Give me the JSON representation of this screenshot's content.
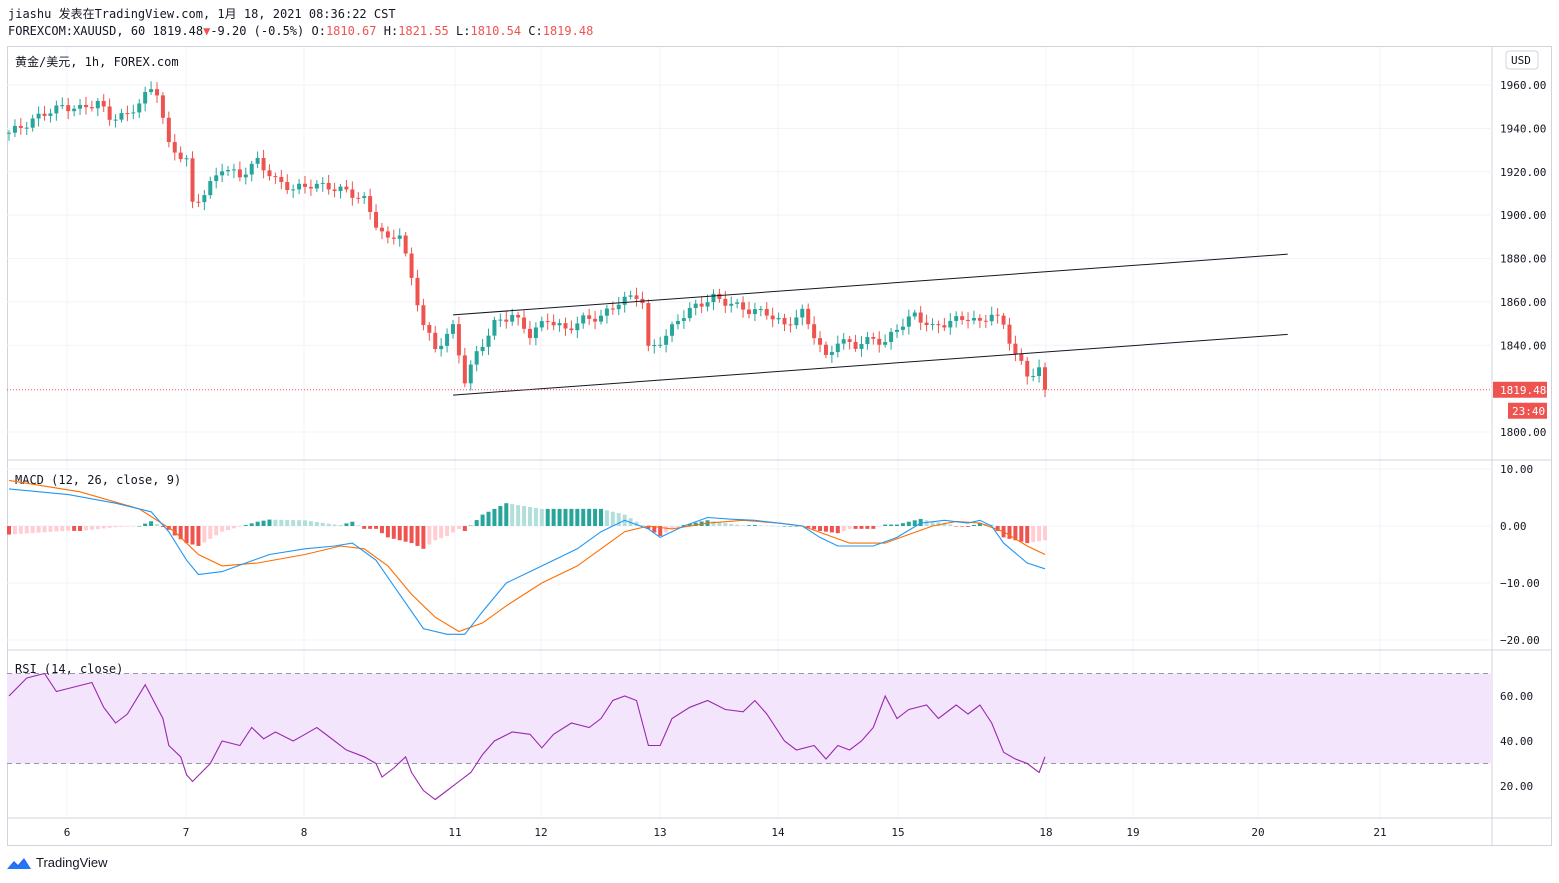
{
  "header": {
    "publish_line": "jiashu 发表在TradingView.com, 1月 18, 2021 08:36:22 CST",
    "symbol": "FOREXCOM:XAUUSD, 60",
    "last": "1819.48",
    "change_arrow": "▼",
    "change": "-9.20 (-0.5%)",
    "open_label": "O:",
    "open": "1810.67",
    "high_label": "H:",
    "high": "1821.55",
    "low_label": "L:",
    "low": "1810.54",
    "close_label": "C:",
    "close": "1819.48"
  },
  "footer": {
    "brand": "TradingView",
    "logo_icon": "tradingview-logo-icon"
  },
  "colors": {
    "up": "#26a69a",
    "down": "#ef5350",
    "macd_line": "#2196f3",
    "signal_line": "#ff6d00",
    "rsi_line": "#9c27b0",
    "rsi_band": "#f3e5fc",
    "channel": "#131722"
  },
  "chart_data": [
    {
      "type": "candlestick",
      "legend": "黄金/美元, 1h, FOREX.com",
      "currency_button": "USD",
      "ylim": [
        1790,
        1972
      ],
      "y_ticks": [
        "1960.00",
        "1940.00",
        "1920.00",
        "1900.00",
        "1880.00",
        "1860.00",
        "1840.00",
        "1800.00"
      ],
      "y_tick_values": [
        1960,
        1940,
        1920,
        1900,
        1880,
        1860,
        1840,
        1800
      ],
      "x_ticks": [
        "6",
        "7",
        "8",
        "11",
        "12",
        "13",
        "14",
        "15",
        "18",
        "19",
        "20",
        "21"
      ],
      "last_price": 1819.48,
      "last_price_label": "1819.48",
      "countdown_label": "23:40",
      "price_path": [
        [
          0,
          1938
        ],
        [
          3,
          1942
        ],
        [
          6,
          1947
        ],
        [
          9,
          1950
        ],
        [
          12,
          1949
        ],
        [
          15,
          1952
        ],
        [
          17,
          1945
        ],
        [
          20,
          1946
        ],
        [
          24,
          1958
        ],
        [
          25,
          1957
        ],
        [
          27,
          1932
        ],
        [
          30,
          1925
        ],
        [
          31,
          1905
        ],
        [
          33,
          1910
        ],
        [
          36,
          1922
        ],
        [
          39,
          1918
        ],
        [
          42,
          1925
        ],
        [
          45,
          1916
        ],
        [
          48,
          1912
        ],
        [
          51,
          1914
        ],
        [
          54,
          1913
        ],
        [
          57,
          1911
        ],
        [
          60,
          1907
        ],
        [
          62,
          1896
        ],
        [
          64,
          1888
        ],
        [
          66,
          1892
        ],
        [
          68,
          1870
        ],
        [
          70,
          1850
        ],
        [
          72,
          1838
        ],
        [
          74,
          1845
        ],
        [
          75,
          1848
        ],
        [
          77,
          1824
        ],
        [
          79,
          1836
        ],
        [
          82,
          1850
        ],
        [
          85,
          1854
        ],
        [
          88,
          1845
        ],
        [
          91,
          1852
        ],
        [
          94,
          1847
        ],
        [
          97,
          1852
        ],
        [
          100,
          1853
        ],
        [
          103,
          1860
        ],
        [
          106,
          1863
        ],
        [
          107,
          1860
        ],
        [
          108,
          1838
        ],
        [
          111,
          1844
        ],
        [
          113,
          1852
        ],
        [
          116,
          1858
        ],
        [
          119,
          1862
        ],
        [
          122,
          1859
        ],
        [
          125,
          1856
        ],
        [
          128,
          1855
        ],
        [
          131,
          1849
        ],
        [
          134,
          1855
        ],
        [
          136,
          1845
        ],
        [
          138,
          1834
        ],
        [
          140,
          1842
        ],
        [
          143,
          1840
        ],
        [
          146,
          1843
        ],
        [
          148,
          1841
        ],
        [
          150,
          1848
        ],
        [
          153,
          1854
        ],
        [
          156,
          1848
        ],
        [
          159,
          1851
        ],
        [
          162,
          1853
        ],
        [
          164,
          1850
        ],
        [
          166,
          1855
        ],
        [
          168,
          1849
        ],
        [
          170,
          1836
        ],
        [
          172,
          1826
        ],
        [
          174,
          1829
        ],
        [
          175,
          1819.48
        ]
      ],
      "channel_upper": {
        "from": [
          75,
          1854
        ],
        "to": [
          216,
          1882
        ]
      },
      "channel_lower": {
        "from": [
          75,
          1817
        ],
        "to": [
          216,
          1845
        ]
      }
    },
    {
      "type": "macd",
      "legend": "MACD (12, 26, close, 9)",
      "ylim": [
        -22,
        12
      ],
      "y_ticks": [
        "10.00",
        "0.00",
        "−10.00",
        "−20.00"
      ],
      "y_tick_values": [
        10,
        0,
        -10,
        -20
      ],
      "macd_path": [
        [
          0,
          6.5
        ],
        [
          10,
          5.5
        ],
        [
          18,
          4
        ],
        [
          24,
          2.5
        ],
        [
          27,
          -1
        ],
        [
          30,
          -6
        ],
        [
          32,
          -8.5
        ],
        [
          36,
          -8
        ],
        [
          40,
          -6.5
        ],
        [
          44,
          -5
        ],
        [
          50,
          -4
        ],
        [
          55,
          -3.5
        ],
        [
          58,
          -3
        ],
        [
          62,
          -6
        ],
        [
          66,
          -12
        ],
        [
          70,
          -18
        ],
        [
          74,
          -19
        ],
        [
          77,
          -19
        ],
        [
          80,
          -15
        ],
        [
          84,
          -10
        ],
        [
          88,
          -8
        ],
        [
          92,
          -6
        ],
        [
          96,
          -4
        ],
        [
          100,
          -1
        ],
        [
          104,
          1
        ],
        [
          108,
          -0.5
        ],
        [
          110,
          -2
        ],
        [
          114,
          0
        ],
        [
          118,
          1.5
        ],
        [
          122,
          1.2
        ],
        [
          126,
          1
        ],
        [
          130,
          0.5
        ],
        [
          134,
          0
        ],
        [
          137,
          -2
        ],
        [
          140,
          -3.5
        ],
        [
          146,
          -3.5
        ],
        [
          150,
          -2
        ],
        [
          154,
          0.5
        ],
        [
          158,
          1
        ],
        [
          162,
          0.5
        ],
        [
          164,
          1
        ],
        [
          166,
          0
        ],
        [
          168,
          -3
        ],
        [
          172,
          -6.5
        ],
        [
          175,
          -7.5
        ]
      ],
      "signal_path": [
        [
          0,
          8
        ],
        [
          12,
          6
        ],
        [
          22,
          3
        ],
        [
          28,
          -1
        ],
        [
          32,
          -5
        ],
        [
          36,
          -7
        ],
        [
          42,
          -6.5
        ],
        [
          50,
          -5
        ],
        [
          56,
          -3.5
        ],
        [
          60,
          -4
        ],
        [
          64,
          -7
        ],
        [
          68,
          -12
        ],
        [
          72,
          -16
        ],
        [
          76,
          -18.5
        ],
        [
          80,
          -17
        ],
        [
          84,
          -14
        ],
        [
          90,
          -10
        ],
        [
          96,
          -7
        ],
        [
          100,
          -4
        ],
        [
          104,
          -1
        ],
        [
          108,
          0
        ],
        [
          112,
          -0.5
        ],
        [
          118,
          0.5
        ],
        [
          124,
          1
        ],
        [
          130,
          0.5
        ],
        [
          134,
          0
        ],
        [
          138,
          -1.5
        ],
        [
          142,
          -3
        ],
        [
          148,
          -3
        ],
        [
          152,
          -1.5
        ],
        [
          156,
          0
        ],
        [
          160,
          0.8
        ],
        [
          164,
          0.5
        ],
        [
          168,
          -1
        ],
        [
          172,
          -3.5
        ],
        [
          175,
          -5
        ]
      ]
    },
    {
      "type": "rsi",
      "legend": "RSI (14, close)",
      "ylim": [
        8,
        75
      ],
      "y_ticks": [
        "60.00",
        "40.00",
        "20.00"
      ],
      "y_tick_values": [
        60,
        40,
        20
      ],
      "band": [
        30,
        70
      ],
      "rsi_path": [
        [
          0,
          60
        ],
        [
          3,
          68
        ],
        [
          6,
          70
        ],
        [
          8,
          62
        ],
        [
          11,
          64
        ],
        [
          14,
          66
        ],
        [
          16,
          55
        ],
        [
          18,
          48
        ],
        [
          20,
          52
        ],
        [
          23,
          65
        ],
        [
          26,
          50
        ],
        [
          27,
          38
        ],
        [
          29,
          33
        ],
        [
          30,
          25
        ],
        [
          31,
          22
        ],
        [
          34,
          30
        ],
        [
          36,
          40
        ],
        [
          39,
          38
        ],
        [
          41,
          46
        ],
        [
          43,
          41
        ],
        [
          45,
          44
        ],
        [
          48,
          40
        ],
        [
          50,
          43
        ],
        [
          52,
          46
        ],
        [
          54,
          42
        ],
        [
          57,
          36
        ],
        [
          60,
          33
        ],
        [
          62,
          30
        ],
        [
          63,
          24
        ],
        [
          65,
          28
        ],
        [
          67,
          33
        ],
        [
          68,
          26
        ],
        [
          70,
          18
        ],
        [
          72,
          14
        ],
        [
          74,
          18
        ],
        [
          76,
          22
        ],
        [
          78,
          26
        ],
        [
          80,
          34
        ],
        [
          82,
          40
        ],
        [
          85,
          44
        ],
        [
          88,
          43
        ],
        [
          90,
          37
        ],
        [
          92,
          43
        ],
        [
          95,
          48
        ],
        [
          98,
          46
        ],
        [
          100,
          50
        ],
        [
          102,
          58
        ],
        [
          104,
          60
        ],
        [
          106,
          58
        ],
        [
          108,
          38
        ],
        [
          110,
          38
        ],
        [
          112,
          50
        ],
        [
          115,
          55
        ],
        [
          118,
          58
        ],
        [
          121,
          54
        ],
        [
          124,
          53
        ],
        [
          126,
          58
        ],
        [
          128,
          52
        ],
        [
          131,
          40
        ],
        [
          133,
          36
        ],
        [
          136,
          38
        ],
        [
          138,
          32
        ],
        [
          140,
          38
        ],
        [
          142,
          36
        ],
        [
          144,
          40
        ],
        [
          146,
          46
        ],
        [
          148,
          60
        ],
        [
          150,
          50
        ],
        [
          152,
          54
        ],
        [
          155,
          56
        ],
        [
          157,
          50
        ],
        [
          160,
          56
        ],
        [
          162,
          52
        ],
        [
          164,
          56
        ],
        [
          166,
          48
        ],
        [
          168,
          35
        ],
        [
          170,
          32
        ],
        [
          172,
          30
        ],
        [
          174,
          26
        ],
        [
          175,
          33
        ]
      ]
    }
  ]
}
